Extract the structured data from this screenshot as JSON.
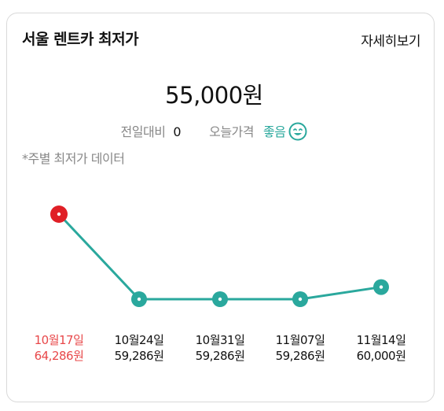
{
  "header": {
    "title": "서울 렌트카 최저가",
    "more_label": "자세히보기"
  },
  "price": {
    "current": "55,000원"
  },
  "stats": {
    "prev_label": "전일대비",
    "prev_value": "0",
    "today_label": "오늘가격",
    "today_value": "좋음",
    "today_icon": "smile-icon"
  },
  "note": "*주별 최저가 데이터",
  "colors": {
    "line": "#2aa89d",
    "highlight": "#e01f26",
    "highlight_text": "#e8484a"
  },
  "chart_data": {
    "type": "line",
    "x": [
      "10월17일",
      "10월24일",
      "10월31일",
      "11월07일",
      "11월14일"
    ],
    "values": [
      64286,
      59286,
      59286,
      59286,
      60000
    ],
    "value_labels": [
      "64,286원",
      "59,286원",
      "59,286원",
      "59,286원",
      "60,000원"
    ],
    "highlight_index": 0
  }
}
